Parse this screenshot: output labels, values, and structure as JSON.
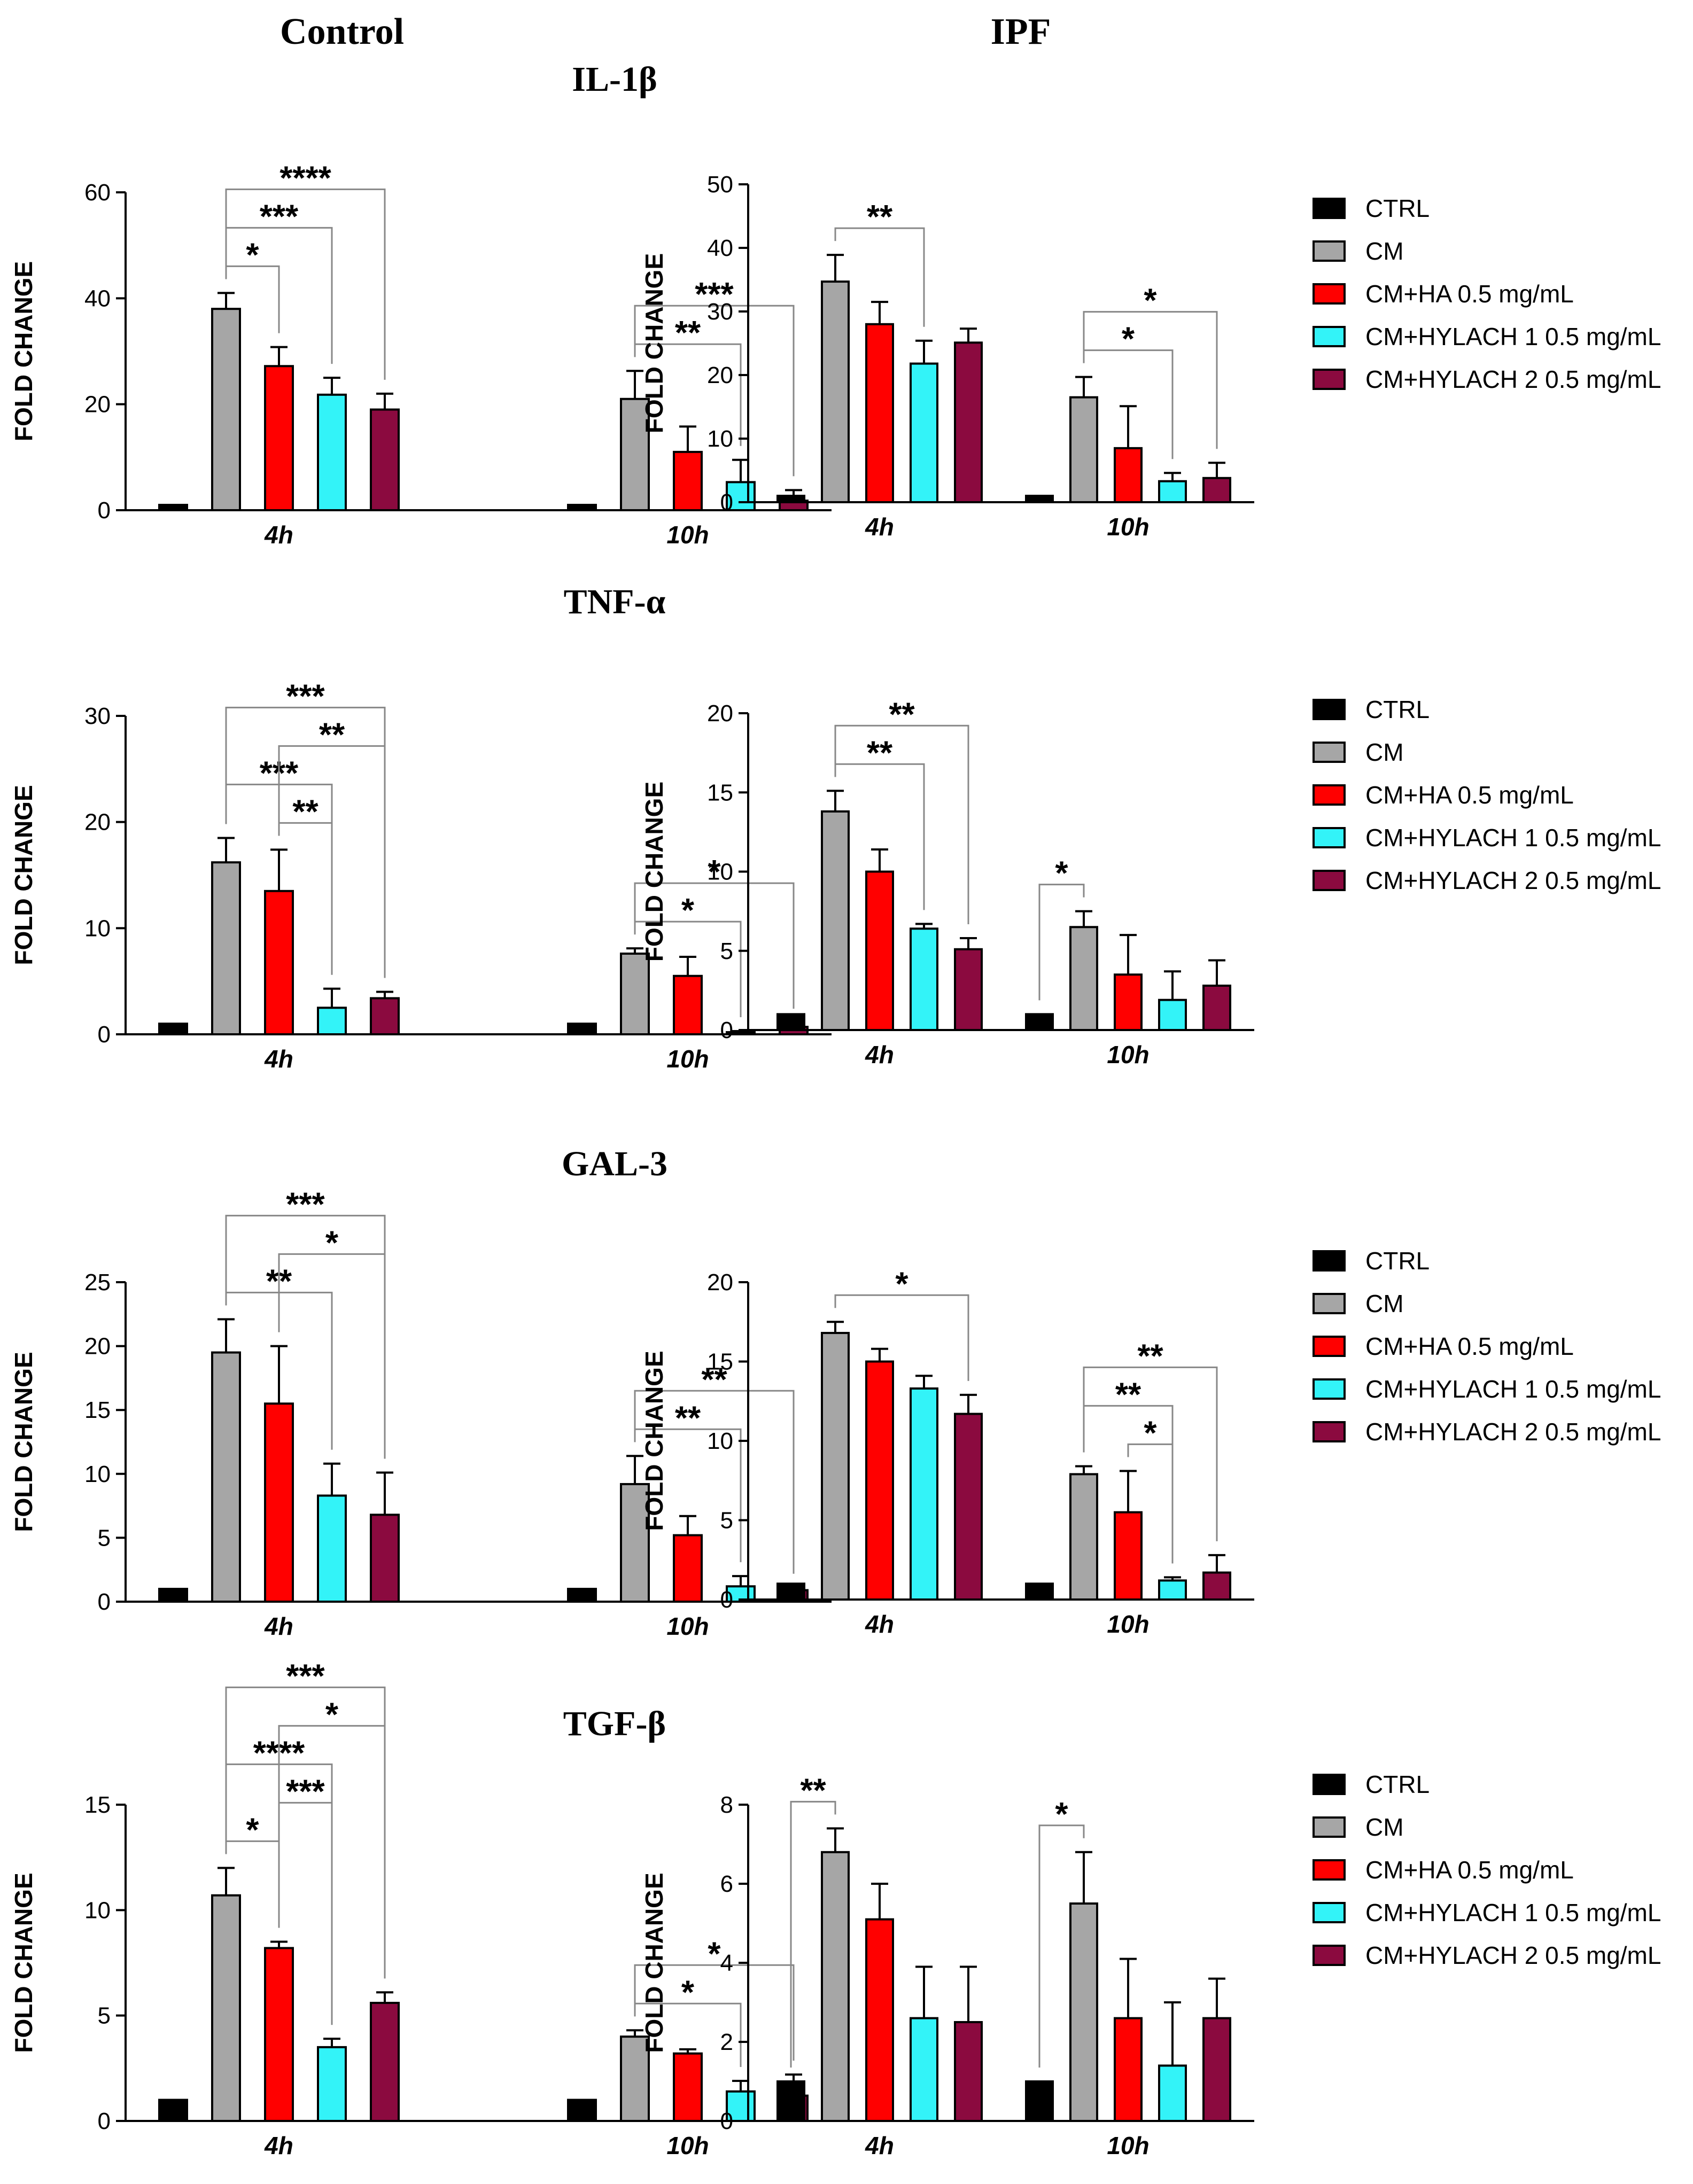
{
  "columns": [
    "Control",
    "IPF"
  ],
  "markers": [
    "IL-1β",
    "TNF-α",
    "GAL-3",
    "TGF-β"
  ],
  "colors": {
    "CTRL": "#000000",
    "CM": "#a6a6a6",
    "CM+HA 0.5 mg/mL": "#ff0000",
    "CM+HYLACH 1 0.5 mg/mL": "#33f3f8",
    "CM+HYLACH 2 0.5 mg/mL": "#8b0a3f"
  },
  "chart_data": [
    {
      "type": "bar",
      "title": "IL-1β",
      "column": "Control",
      "ylabel": "FOLD CHANGE",
      "categories": [
        "4h",
        "10h"
      ],
      "ylim": [
        0,
        60
      ],
      "yticks": [
        0,
        20,
        40,
        60
      ],
      "series": [
        {
          "name": "CTRL",
          "values": [
            1,
            1
          ],
          "errors": [
            0,
            0
          ]
        },
        {
          "name": "CM",
          "values": [
            38,
            21
          ],
          "errors": [
            3,
            5.3
          ]
        },
        {
          "name": "CM+HA 0.5 mg/mL",
          "values": [
            27.2,
            11
          ],
          "errors": [
            3.6,
            4.8
          ]
        },
        {
          "name": "CM+HYLACH 1 0.5 mg/mL",
          "values": [
            21.8,
            5.3
          ],
          "errors": [
            3.2,
            4.2
          ]
        },
        {
          "name": "CM+HYLACH 2 0.5 mg/mL",
          "values": [
            19,
            1.8
          ],
          "errors": [
            3,
            2
          ]
        }
      ],
      "significance": [
        {
          "group": 0,
          "from": 1,
          "to": 2,
          "label": "*"
        },
        {
          "group": 0,
          "from": 1,
          "to": 3,
          "label": "***"
        },
        {
          "group": 0,
          "from": 1,
          "to": 4,
          "label": "****"
        },
        {
          "group": 1,
          "from": 1,
          "to": 3,
          "label": "**"
        },
        {
          "group": 1,
          "from": 1,
          "to": 4,
          "label": "***"
        }
      ]
    },
    {
      "type": "bar",
      "title": "IL-1β",
      "column": "IPF",
      "ylabel": "FOLD CHANGE",
      "categories": [
        "4h",
        "10h"
      ],
      "ylim": [
        0,
        50
      ],
      "yticks": [
        0,
        10,
        20,
        30,
        40,
        50
      ],
      "series": [
        {
          "name": "CTRL",
          "values": [
            1,
            1
          ],
          "errors": [
            0,
            0
          ]
        },
        {
          "name": "CM",
          "values": [
            34.7,
            16.5
          ],
          "errors": [
            4.2,
            3.2
          ]
        },
        {
          "name": "CM+HA 0.5 mg/mL",
          "values": [
            28,
            8.5
          ],
          "errors": [
            3.5,
            6.6
          ]
        },
        {
          "name": "CM+HYLACH 1 0.5 mg/mL",
          "values": [
            21.8,
            3.3
          ],
          "errors": [
            3.6,
            1.3
          ]
        },
        {
          "name": "CM+HYLACH 2 0.5 mg/mL",
          "values": [
            25.1,
            3.8
          ],
          "errors": [
            2.2,
            2.4
          ]
        }
      ],
      "significance": [
        {
          "group": 0,
          "from": 1,
          "to": 3,
          "label": "**"
        },
        {
          "group": 1,
          "from": 1,
          "to": 3,
          "label": "*"
        },
        {
          "group": 1,
          "from": 1,
          "to": 4,
          "label": "*"
        }
      ]
    },
    {
      "type": "bar",
      "title": "TNF-α",
      "column": "Control",
      "ylabel": "FOLD CHANGE",
      "categories": [
        "4h",
        "10h"
      ],
      "ylim": [
        0,
        30
      ],
      "yticks": [
        0,
        10,
        20,
        30
      ],
      "series": [
        {
          "name": "CTRL",
          "values": [
            1,
            1
          ],
          "errors": [
            0,
            0
          ]
        },
        {
          "name": "CM",
          "values": [
            16.2,
            7.6
          ],
          "errors": [
            2.3,
            0.5
          ]
        },
        {
          "name": "CM+HA 0.5 mg/mL",
          "values": [
            13.5,
            5.5
          ],
          "errors": [
            3.9,
            1.8
          ]
        },
        {
          "name": "CM+HYLACH 1 0.5 mg/mL",
          "values": [
            2.5,
            0.2
          ],
          "errors": [
            1.8,
            0.1
          ]
        },
        {
          "name": "CM+HYLACH 2 0.5 mg/mL",
          "values": [
            3.4,
            0.7
          ],
          "errors": [
            0.6,
            0.4
          ]
        }
      ],
      "significance": [
        {
          "group": 0,
          "from": 2,
          "to": 3,
          "label": "**"
        },
        {
          "group": 0,
          "from": 2,
          "to": 4,
          "label": "**"
        },
        {
          "group": 0,
          "from": 1,
          "to": 3,
          "label": "***"
        },
        {
          "group": 0,
          "from": 1,
          "to": 4,
          "label": "***"
        },
        {
          "group": 1,
          "from": 1,
          "to": 3,
          "label": "*"
        },
        {
          "group": 1,
          "from": 1,
          "to": 4,
          "label": "*"
        }
      ]
    },
    {
      "type": "bar",
      "title": "TNF-α",
      "column": "IPF",
      "ylabel": "FOLD CHANGE",
      "categories": [
        "4h",
        "10h"
      ],
      "ylim": [
        0,
        20
      ],
      "yticks": [
        0,
        5,
        10,
        15,
        20
      ],
      "series": [
        {
          "name": "CTRL",
          "values": [
            1,
            1
          ],
          "errors": [
            0,
            0
          ]
        },
        {
          "name": "CM",
          "values": [
            13.8,
            6.5
          ],
          "errors": [
            1.3,
            1
          ]
        },
        {
          "name": "CM+HA 0.5 mg/mL",
          "values": [
            10,
            3.5
          ],
          "errors": [
            1.4,
            2.5
          ]
        },
        {
          "name": "CM+HYLACH 1 0.5 mg/mL",
          "values": [
            6.4,
            1.9
          ],
          "errors": [
            0.3,
            1.8
          ]
        },
        {
          "name": "CM+HYLACH 2 0.5 mg/mL",
          "values": [
            5.1,
            2.8
          ],
          "errors": [
            0.7,
            1.6
          ]
        }
      ],
      "significance": [
        {
          "group": 0,
          "from": 1,
          "to": 3,
          "label": "**"
        },
        {
          "group": 0,
          "from": 1,
          "to": 4,
          "label": "**"
        },
        {
          "group": 1,
          "from": 0,
          "to": 1,
          "label": "*"
        }
      ]
    },
    {
      "type": "bar",
      "title": "GAL-3",
      "column": "Control",
      "ylabel": "FOLD CHANGE",
      "categories": [
        "4h",
        "10h"
      ],
      "ylim": [
        0,
        25
      ],
      "yticks": [
        0,
        5,
        10,
        15,
        20,
        25
      ],
      "series": [
        {
          "name": "CTRL",
          "values": [
            1,
            1
          ],
          "errors": [
            0,
            0
          ]
        },
        {
          "name": "CM",
          "values": [
            19.5,
            9.2
          ],
          "errors": [
            2.6,
            2.2
          ]
        },
        {
          "name": "CM+HA 0.5 mg/mL",
          "values": [
            15.5,
            5.2
          ],
          "errors": [
            4.5,
            1.5
          ]
        },
        {
          "name": "CM+HYLACH 1 0.5 mg/mL",
          "values": [
            8.3,
            1.2
          ],
          "errors": [
            2.5,
            0.8
          ]
        },
        {
          "name": "CM+HYLACH 2 0.5 mg/mL",
          "values": [
            6.8,
            0.9
          ],
          "errors": [
            3.3,
            0.2
          ]
        }
      ],
      "significance": [
        {
          "group": 0,
          "from": 2,
          "to": 4,
          "label": "*"
        },
        {
          "group": 0,
          "from": 1,
          "to": 3,
          "label": "**"
        },
        {
          "group": 0,
          "from": 1,
          "to": 4,
          "label": "***"
        },
        {
          "group": 1,
          "from": 1,
          "to": 3,
          "label": "**"
        },
        {
          "group": 1,
          "from": 1,
          "to": 4,
          "label": "**"
        }
      ]
    },
    {
      "type": "bar",
      "title": "GAL-3",
      "column": "IPF",
      "ylabel": "FOLD CHANGE",
      "categories": [
        "4h",
        "10h"
      ],
      "ylim": [
        0,
        20
      ],
      "yticks": [
        0,
        5,
        10,
        15,
        20
      ],
      "series": [
        {
          "name": "CTRL",
          "values": [
            1,
            1
          ],
          "errors": [
            0,
            0
          ]
        },
        {
          "name": "CM",
          "values": [
            16.8,
            7.9
          ],
          "errors": [
            0.7,
            0.5
          ]
        },
        {
          "name": "CM+HA 0.5 mg/mL",
          "values": [
            15,
            5.5
          ],
          "errors": [
            0.8,
            2.6
          ]
        },
        {
          "name": "CM+HYLACH 1 0.5 mg/mL",
          "values": [
            13.3,
            1.2
          ],
          "errors": [
            0.8,
            0.2
          ]
        },
        {
          "name": "CM+HYLACH 2 0.5 mg/mL",
          "values": [
            11.7,
            1.7
          ],
          "errors": [
            1.2,
            1.1
          ]
        }
      ],
      "significance": [
        {
          "group": 0,
          "from": 1,
          "to": 4,
          "label": "*"
        },
        {
          "group": 1,
          "from": 2,
          "to": 3,
          "label": "*"
        },
        {
          "group": 1,
          "from": 1,
          "to": 3,
          "label": "**"
        },
        {
          "group": 1,
          "from": 1,
          "to": 4,
          "label": "**"
        }
      ]
    },
    {
      "type": "bar",
      "title": "TGF-β",
      "column": "Control",
      "ylabel": "FOLD CHANGE",
      "categories": [
        "4h",
        "10h"
      ],
      "ylim": [
        0,
        15
      ],
      "yticks": [
        0,
        5,
        10,
        15
      ],
      "series": [
        {
          "name": "CTRL",
          "values": [
            1,
            1
          ],
          "errors": [
            0,
            0
          ]
        },
        {
          "name": "CM",
          "values": [
            10.7,
            4
          ],
          "errors": [
            1.3,
            0.3
          ]
        },
        {
          "name": "CM+HA 0.5 mg/mL",
          "values": [
            8.2,
            3.2
          ],
          "errors": [
            0.3,
            0.2
          ]
        },
        {
          "name": "CM+HYLACH 1 0.5 mg/mL",
          "values": [
            3.5,
            1.4
          ],
          "errors": [
            0.4,
            0.5
          ]
        },
        {
          "name": "CM+HYLACH 2 0.5 mg/mL",
          "values": [
            5.6,
            1.2
          ],
          "errors": [
            0.5,
            1
          ]
        }
      ],
      "significance": [
        {
          "group": 0,
          "from": 1,
          "to": 2,
          "label": "*"
        },
        {
          "group": 0,
          "from": 2,
          "to": 3,
          "label": "***"
        },
        {
          "group": 0,
          "from": 2,
          "to": 4,
          "label": "*"
        },
        {
          "group": 0,
          "from": 1,
          "to": 3,
          "label": "****"
        },
        {
          "group": 0,
          "from": 1,
          "to": 4,
          "label": "***"
        },
        {
          "group": 1,
          "from": 1,
          "to": 3,
          "label": "*"
        },
        {
          "group": 1,
          "from": 1,
          "to": 4,
          "label": "*"
        }
      ]
    },
    {
      "type": "bar",
      "title": "TGF-β",
      "column": "IPF",
      "ylabel": "FOLD CHANGE",
      "categories": [
        "4h",
        "10h"
      ],
      "ylim": [
        0,
        8
      ],
      "yticks": [
        0,
        2,
        4,
        6,
        8
      ],
      "series": [
        {
          "name": "CTRL",
          "values": [
            1,
            1
          ],
          "errors": [
            0,
            0
          ]
        },
        {
          "name": "CM",
          "values": [
            6.8,
            5.5
          ],
          "errors": [
            0.6,
            1.3
          ]
        },
        {
          "name": "CM+HA 0.5 mg/mL",
          "values": [
            5.1,
            2.6
          ],
          "errors": [
            0.9,
            1.5
          ]
        },
        {
          "name": "CM+HYLACH 1 0.5 mg/mL",
          "values": [
            2.6,
            1.4
          ],
          "errors": [
            1.3,
            1.6
          ]
        },
        {
          "name": "CM+HYLACH 2 0.5 mg/mL",
          "values": [
            2.5,
            2.6
          ],
          "errors": [
            1.4,
            1
          ]
        }
      ],
      "significance": [
        {
          "group": 0,
          "from": 0,
          "to": 1,
          "label": "**"
        },
        {
          "group": 1,
          "from": 0,
          "to": 1,
          "label": "*"
        }
      ]
    }
  ],
  "legends": [
    [
      "CTRL",
      "CM",
      "CM+HA 0.5 mg/mL",
      "CM+HYLACH 1 0.5 mg/mL",
      "CM+HYLACH 2 0.5 mg/mL"
    ],
    [
      "CTRL",
      "CM",
      "CM+HA 0.5 mg/mL",
      "CM+HYLACH 1 0.5 mg/mL",
      "CM+HYLACH 2 0.5 mg/mL"
    ],
    [
      "CTRL",
      "CM",
      "CM+HA 0.5 mg/mL",
      "CM+HYLACH 1 0.5 mg/mL",
      "CM+HYLACH 2 0.5 mg/mL"
    ],
    [
      "CTRL",
      "CM",
      "CM+HA 0.5 mg/mL",
      "CM+HYLACH 1 0.5 mg/mL",
      "CM+HYLACH 2 0.5 mg/mL"
    ]
  ]
}
